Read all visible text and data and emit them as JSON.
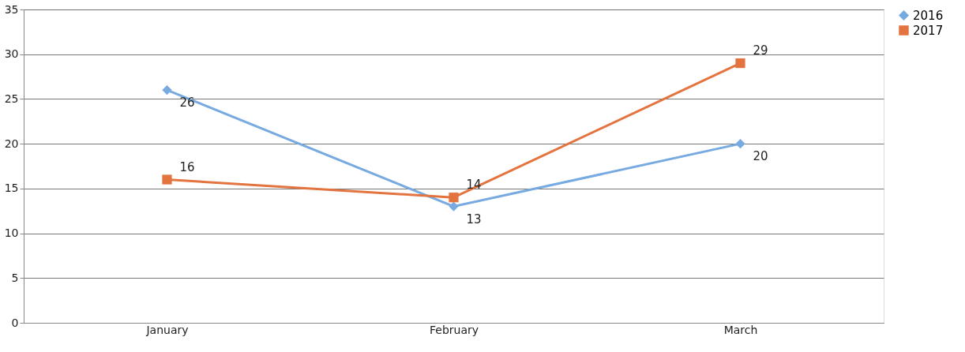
{
  "chart_data": {
    "type": "line",
    "categories": [
      "January",
      "February",
      "March"
    ],
    "series": [
      {
        "name": "2016",
        "color": "#77aae0",
        "marker": "diamond",
        "values": [
          26,
          13,
          20
        ]
      },
      {
        "name": "2017",
        "color": "#e4743f",
        "marker": "square",
        "values": [
          16,
          14,
          29
        ]
      }
    ],
    "ylim": [
      0,
      35
    ],
    "yticks": [
      0,
      5,
      10,
      15,
      20,
      25,
      30,
      35
    ],
    "grid": "y",
    "legend": "right",
    "data_labels": true
  }
}
